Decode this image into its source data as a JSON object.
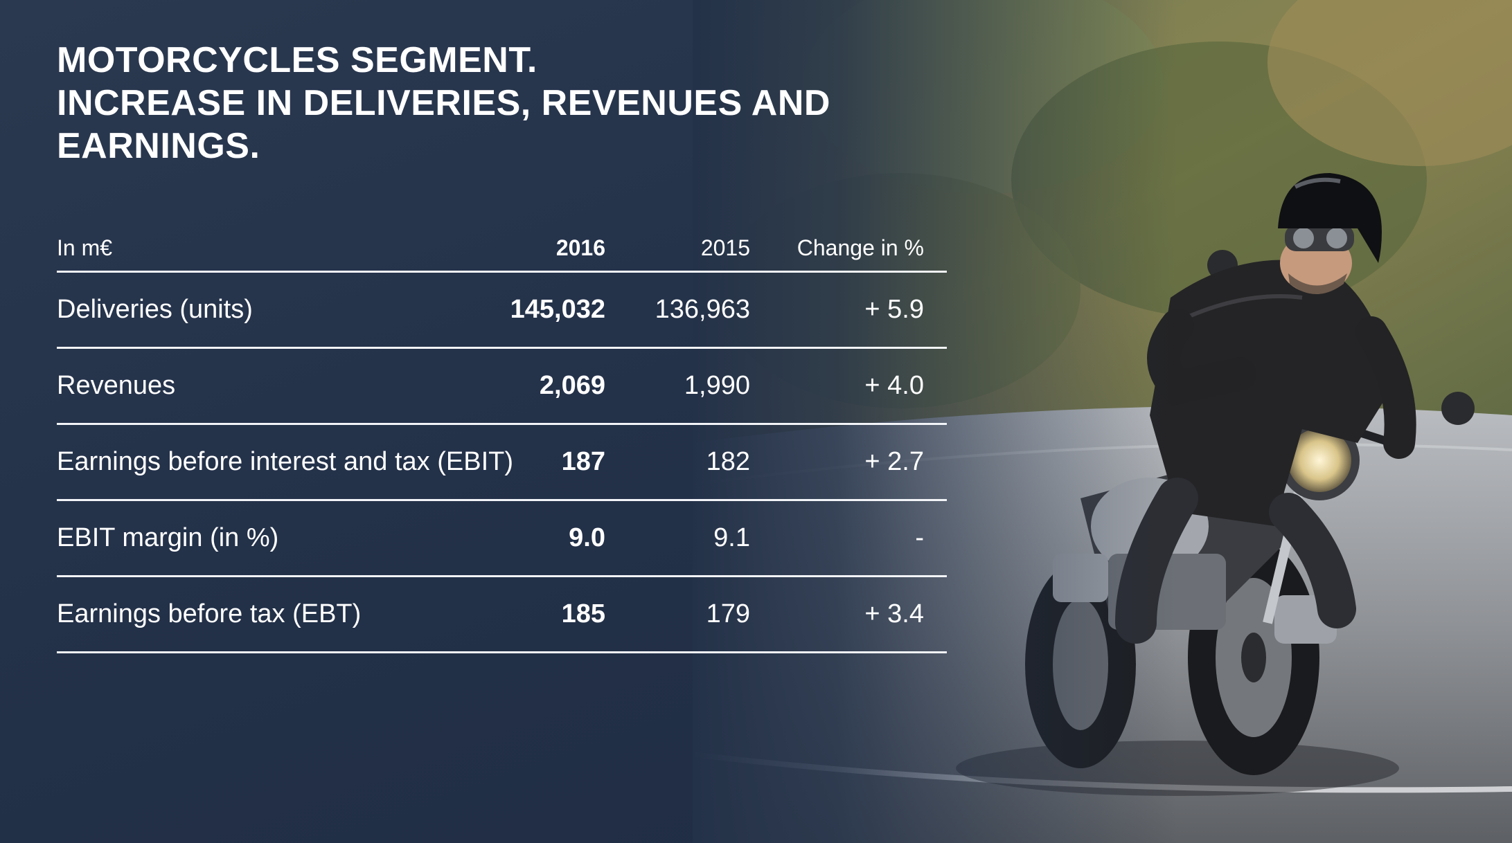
{
  "title": {
    "line1": "MOTORCYCLES SEGMENT.",
    "line2": "INCREASE IN DELIVERIES, REVENUES AND EARNINGS."
  },
  "table": {
    "header": {
      "unit": "In m€",
      "col_2016": "2016",
      "col_2015": "2015",
      "col_change": "Change in %"
    },
    "rows": [
      {
        "label": "Deliveries (units)",
        "v2016": "145,032",
        "v2015": "136,963",
        "change": "+ 5.9"
      },
      {
        "label": "Revenues",
        "v2016": "2,069",
        "v2015": "1,990",
        "change": "+ 4.0"
      },
      {
        "label": "Earnings before interest and tax (EBIT)",
        "v2016": "187",
        "v2015": "182",
        "change": "+ 2.7"
      },
      {
        "label": "EBIT margin (in %)",
        "v2016": "9.0",
        "v2015": "9.1",
        "change": "-"
      },
      {
        "label": "Earnings before tax (EBT)",
        "v2016": "185",
        "v2015": "179",
        "change": "+ 3.4"
      }
    ]
  },
  "colors": {
    "background": "#233149",
    "text": "#ffffff",
    "rule": "#f2f4f7"
  },
  "photo": {
    "subject": "motorcycle-rider-photo"
  }
}
